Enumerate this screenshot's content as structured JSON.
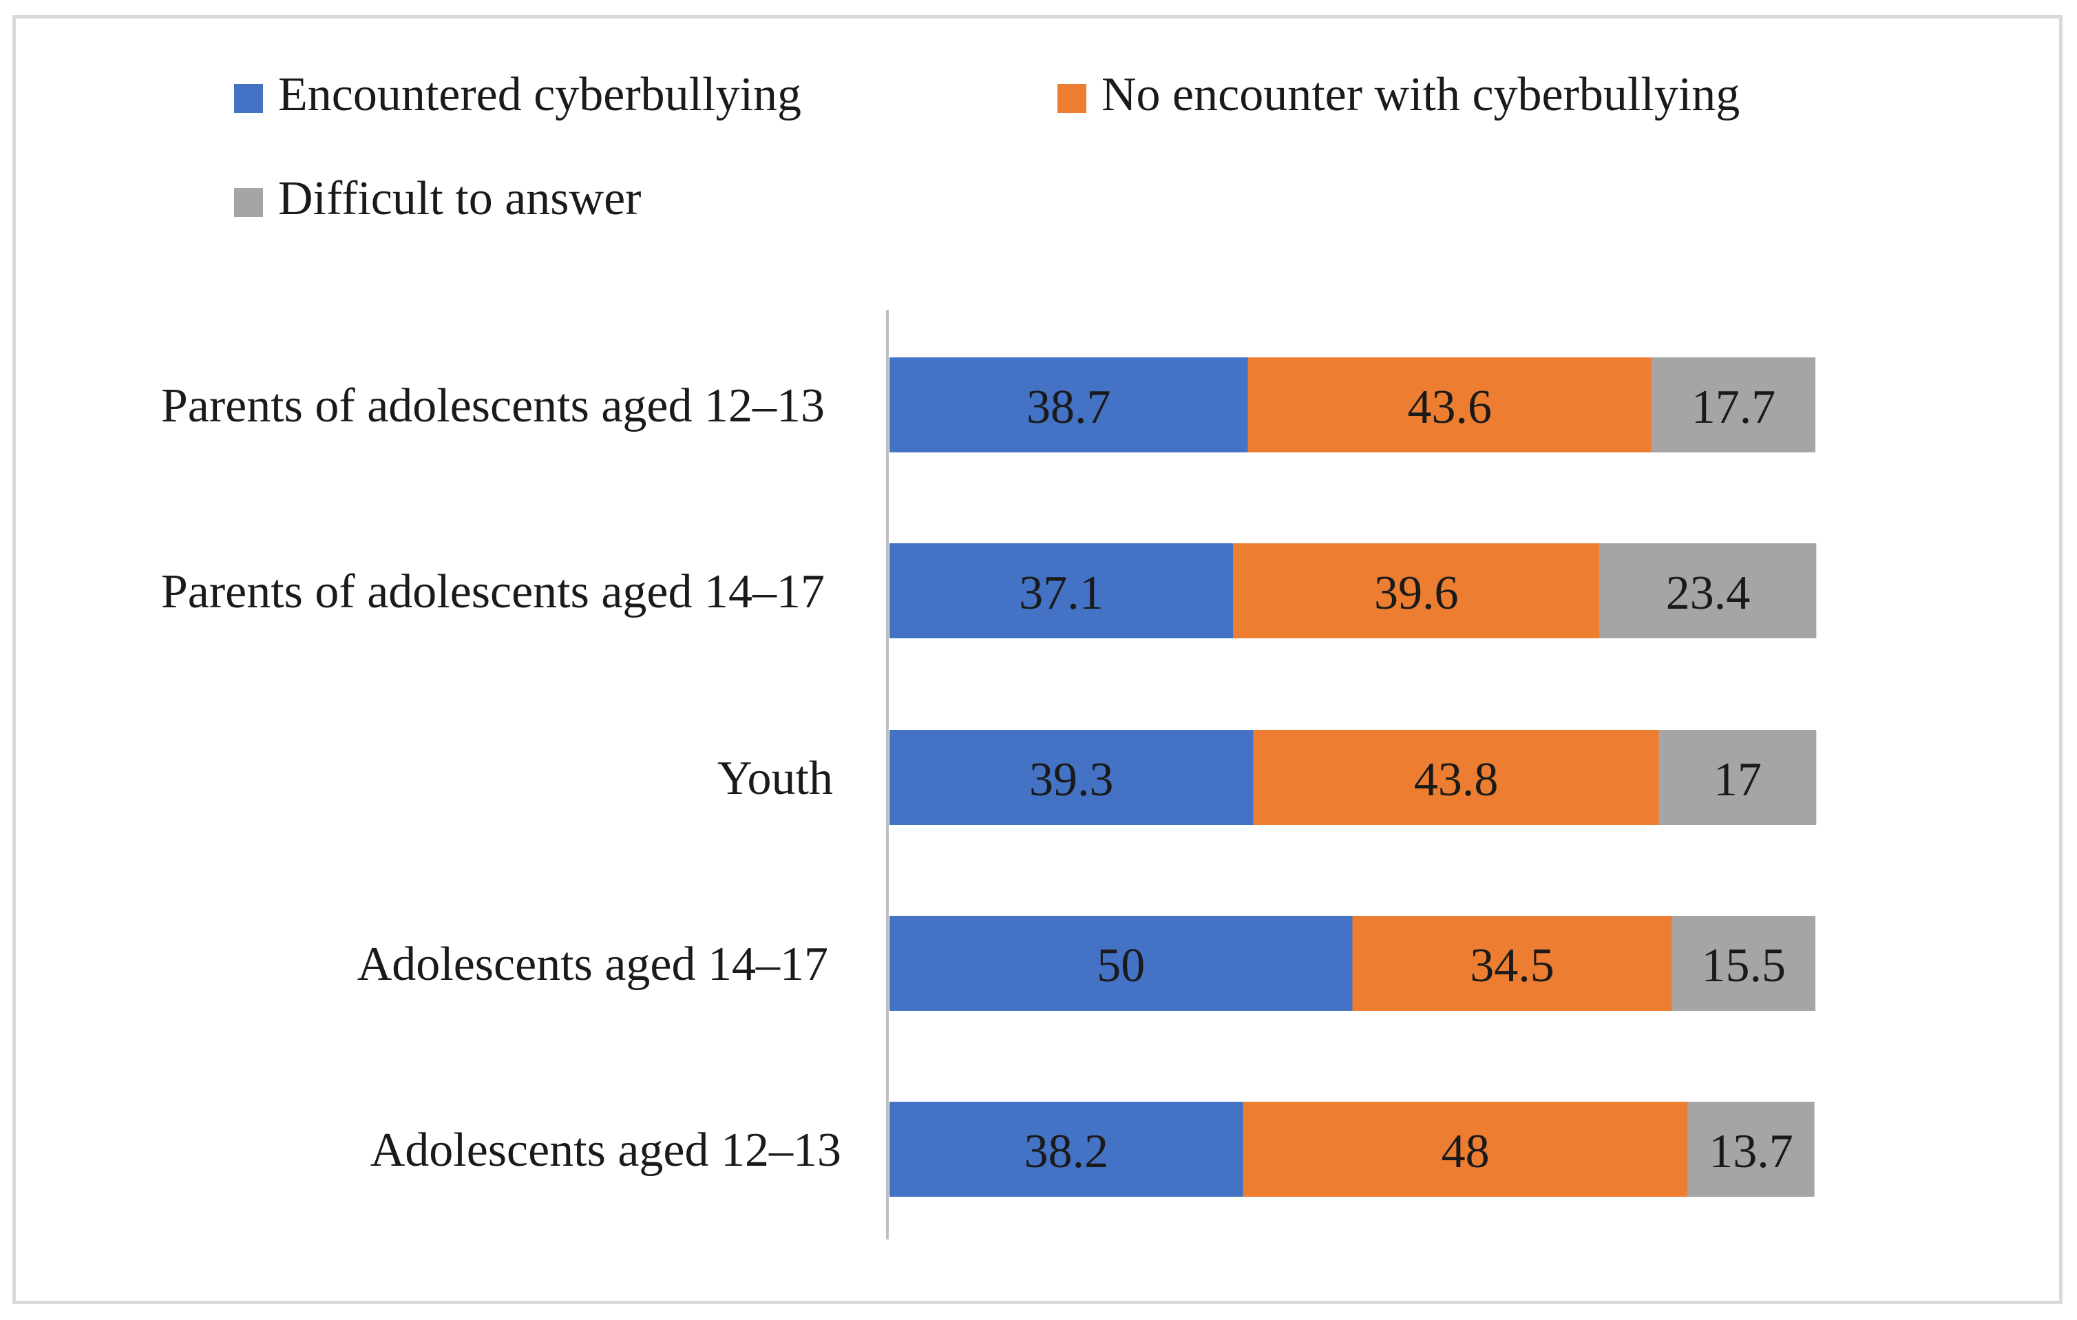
{
  "chart_data": {
    "type": "bar",
    "orientation": "horizontal",
    "stacked": true,
    "title": "",
    "xlabel": "",
    "ylabel": "",
    "xlim": [
      0,
      100
    ],
    "grid": false,
    "legend_position": "top-left",
    "categories": [
      "Parents of adolescents aged 12–13",
      "Parents of adolescents aged 14–17",
      "Youth",
      "Adolescents aged 14–17",
      "Adolescents aged 12–13"
    ],
    "series": [
      {
        "name": "Encountered cyberbullying",
        "color": "#4472c4",
        "values": [
          38.7,
          37.1,
          39.3,
          50,
          38.2
        ]
      },
      {
        "name": "No encounter with cyberbullying",
        "color": "#ed7d31",
        "values": [
          43.6,
          39.6,
          43.8,
          34.5,
          48
        ]
      },
      {
        "name": "Difficult to answer",
        "color": "#a5a5a5",
        "values": [
          17.7,
          23.4,
          17,
          15.5,
          13.7
        ]
      }
    ]
  }
}
